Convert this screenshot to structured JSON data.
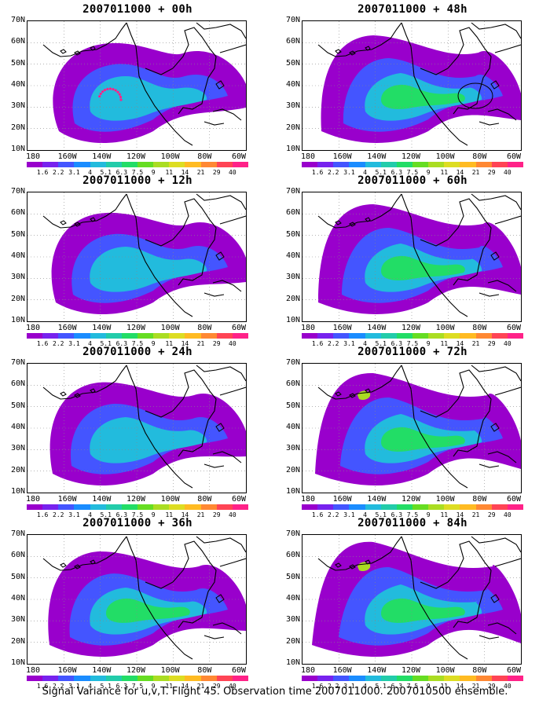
{
  "panels": [
    {
      "title": "2007011000 + 00h",
      "level": 0
    },
    {
      "title": "2007011000 + 48h",
      "level": 4
    },
    {
      "title": "2007011000 + 12h",
      "level": 1
    },
    {
      "title": "2007011000 + 60h",
      "level": 5
    },
    {
      "title": "2007011000 + 24h",
      "level": 2
    },
    {
      "title": "2007011000 + 72h",
      "level": 6
    },
    {
      "title": "2007011000 + 36h",
      "level": 3
    },
    {
      "title": "2007011000 + 84h",
      "level": 7
    }
  ],
  "lat_labels": [
    "70N",
    "60N",
    "50N",
    "40N",
    "30N",
    "20N",
    "10N"
  ],
  "lon_labels": [
    "180",
    "160W",
    "140W",
    "120W",
    "100W",
    "80W",
    "60W"
  ],
  "colorbar": {
    "colors": [
      "#9900cc",
      "#7722ee",
      "#4455ff",
      "#1a8cff",
      "#22bbdd",
      "#22ccaa",
      "#22dd66",
      "#66dd22",
      "#aadd22",
      "#dddd22",
      "#ffbb22",
      "#ff8833",
      "#ff4455",
      "#ff2288"
    ],
    "labels": [
      "1.6",
      "2.2",
      "3.1",
      "4",
      "5.1",
      "6.3",
      "7.5",
      "9",
      "11",
      "14",
      "21",
      "29",
      "40"
    ]
  },
  "footer": "Signal Variance for u,v,T. Flight 45. Observation time 2007011000. 2007010500 ensemble."
}
